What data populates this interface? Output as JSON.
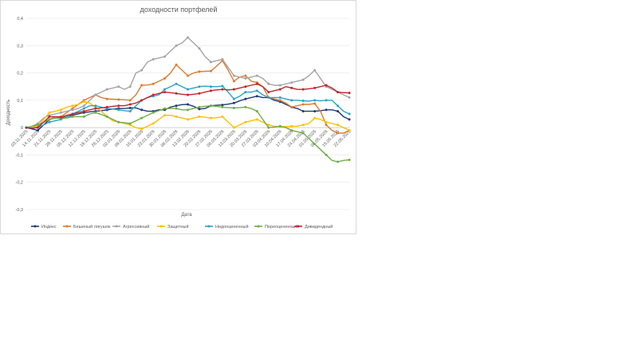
{
  "chart_data": {
    "type": "line",
    "title": "доходности портфелей",
    "xlabel": "Дата",
    "ylabel": "Доходность",
    "ylim": [
      -0.3,
      0.4
    ],
    "yticks": [
      "0,4",
      "0,3",
      "0,2",
      "0,1",
      "0",
      "-0,1",
      "-0,2",
      "-0,3"
    ],
    "grid": true,
    "legend_position": "bottom",
    "categories": [
      "03.11.2025",
      "10.11.2025",
      "14.11.2025",
      "17.11.2025",
      "21.11.2025",
      "24.11.2025",
      "28.11.2025",
      "01.12.2025",
      "05.12.2025",
      "08.12.2025",
      "12.12.2025",
      "15.12.2025",
      "19.12.2025",
      "22.12.2025",
      "26.12.2025",
      "29.12.2025",
      "02.01.2026",
      "05.01.2026",
      "09.01.2026",
      "12.01.2026",
      "16.01.2026",
      "19.01.2026",
      "23.01.2026",
      "26.01.2026",
      "30.01.2026",
      "02.02.2026",
      "06.02.2026",
      "09.02.2026",
      "13.02.2026",
      "16.02.2026",
      "20.02.2026",
      "23.02.2026",
      "27.02.2026",
      "02.03.2026",
      "06.03.2026",
      "09.03.2026",
      "13.03.2026",
      "16.03.2026",
      "20.03.2026",
      "23.03.2026",
      "27.03.2026",
      "30.03.2026",
      "03.04.2026",
      "06.04.2026",
      "10.04.2026",
      "13.04.2026",
      "17.04.2026",
      "20.04.2026",
      "24.04.2026",
      "27.04.2026",
      "01.05.2026",
      "04.05.2026",
      "08.05.2026",
      "11.05.2026",
      "15.05.2026",
      "18.05.2026",
      "22.05.2026"
    ],
    "x_tick_labels": [
      "03.11.2025",
      "14.11.2025",
      "21.11.2025",
      "28.11.2025",
      "05.12.2025",
      "12.12.2025",
      "19.12.2025",
      "26.12.2025",
      "02.01.2026",
      "09.01.2026",
      "16.01.2026",
      "23.01.2026",
      "30.01.2026",
      "06.02.2026",
      "13.02.2026",
      "20.02.2026",
      "27.02.2026",
      "06.03.2026",
      "13.03.2026",
      "20.03.2026",
      "27.03.2026",
      "03.04.2026",
      "10.04.2026",
      "17.04.2026",
      "24.04.2026",
      "01.05.2026",
      "08.05.2026",
      "15.05.2026",
      "22.05.2026"
    ],
    "marker_every": 2,
    "series": [
      {
        "name": "Индекс",
        "color": "#1f3a75",
        "values": [
          0,
          -0.005,
          -0.01,
          0.01,
          0.03,
          0.035,
          0.035,
          0.04,
          0.045,
          0.05,
          0.055,
          0.058,
          0.06,
          0.062,
          0.065,
          0.068,
          0.07,
          0.07,
          0.072,
          0.072,
          0.065,
          0.06,
          0.06,
          0.065,
          0.065,
          0.075,
          0.08,
          0.084,
          0.085,
          0.078,
          0.068,
          0.07,
          0.08,
          0.082,
          0.083,
          0.086,
          0.09,
          0.098,
          0.105,
          0.11,
          0.115,
          0.11,
          0.11,
          0.1,
          0.095,
          0.085,
          0.075,
          0.07,
          0.06,
          0.06,
          0.06,
          0.062,
          0.065,
          0.065,
          0.06,
          0.04,
          0.03
        ]
      },
      {
        "name": "Бешеный лягушок",
        "color": "#e07b2f",
        "values": [
          0,
          -0.002,
          0.005,
          0.02,
          0.03,
          0.04,
          0.04,
          0.055,
          0.07,
          0.085,
          0.1,
          0.11,
          0.12,
          0.11,
          0.105,
          0.104,
          0.103,
          0.102,
          0.1,
          0.12,
          0.155,
          0.156,
          0.16,
          0.17,
          0.18,
          0.2,
          0.23,
          0.21,
          0.19,
          0.2,
          0.205,
          0.206,
          0.207,
          0.225,
          0.245,
          0.21,
          0.17,
          0.185,
          0.19,
          0.17,
          0.165,
          0.15,
          0.11,
          0.105,
          0.1,
          0.09,
          0.075,
          0.08,
          0.085,
          0.085,
          0.088,
          0.06,
          0.01,
          -0.01,
          -0.02,
          -0.02,
          -0.01
        ]
      },
      {
        "name": "Агрессивный",
        "color": "#a5a5a5",
        "values": [
          0,
          0.005,
          0.015,
          0.035,
          0.045,
          0.05,
          0.055,
          0.06,
          0.065,
          0.07,
          0.08,
          0.1,
          0.12,
          0.13,
          0.14,
          0.145,
          0.15,
          0.14,
          0.15,
          0.2,
          0.21,
          0.24,
          0.25,
          0.255,
          0.26,
          0.28,
          0.3,
          0.31,
          0.33,
          0.31,
          0.29,
          0.26,
          0.24,
          0.245,
          0.25,
          0.22,
          0.19,
          0.185,
          0.18,
          0.185,
          0.19,
          0.18,
          0.16,
          0.155,
          0.155,
          0.16,
          0.165,
          0.17,
          0.175,
          0.19,
          0.21,
          0.18,
          0.15,
          0.14,
          0.13,
          0.12,
          0.11
        ]
      },
      {
        "name": "Защитный",
        "color": "#ffc000",
        "values": [
          0,
          0.002,
          0.005,
          0.03,
          0.055,
          0.06,
          0.065,
          0.075,
          0.08,
          0.085,
          0.095,
          0.09,
          0.075,
          0.06,
          0.04,
          0.025,
          0.02,
          0.015,
          0.01,
          0,
          -0.005,
          0.005,
          0.015,
          0.03,
          0.045,
          0.045,
          0.04,
          0.035,
          0.03,
          0.035,
          0.04,
          0.038,
          0.035,
          0.036,
          0.04,
          0.02,
          0,
          0.01,
          0.02,
          0.025,
          0.03,
          0.02,
          0.01,
          0.005,
          0.004,
          0.004,
          0.005,
          0.005,
          0.01,
          0.015,
          0.035,
          0.03,
          0.02,
          0.015,
          0.01,
          0,
          -0.01
        ]
      },
      {
        "name": "Недооцененный",
        "color": "#2ba3c9",
        "values": [
          0,
          -0.002,
          0,
          0.01,
          0.02,
          0.025,
          0.03,
          0.04,
          0.05,
          0.06,
          0.07,
          0.08,
          0.08,
          0.075,
          0.07,
          0.068,
          0.065,
          0.062,
          0.06,
          0.08,
          0.1,
          0.11,
          0.115,
          0.12,
          0.14,
          0.15,
          0.16,
          0.15,
          0.14,
          0.145,
          0.15,
          0.152,
          0.15,
          0.15,
          0.152,
          0.13,
          0.105,
          0.115,
          0.13,
          0.13,
          0.135,
          0.12,
          0.11,
          0.11,
          0.11,
          0.105,
          0.1,
          0.1,
          0.098,
          0.097,
          0.1,
          0.098,
          0.1,
          0.1,
          0.08,
          0.06,
          0.05
        ]
      },
      {
        "name": "Переоцененный",
        "color": "#70ad47",
        "values": [
          0,
          0.005,
          0.01,
          0.02,
          0.03,
          0.035,
          0.035,
          0.035,
          0.04,
          0.04,
          0.04,
          0.05,
          0.055,
          0.048,
          0.04,
          0.03,
          0.02,
          0.018,
          0.015,
          0.025,
          0.035,
          0.045,
          0.055,
          0.062,
          0.07,
          0.07,
          0.07,
          0.065,
          0.065,
          0.07,
          0.075,
          0.078,
          0.08,
          0.078,
          0.075,
          0.073,
          0.072,
          0.073,
          0.075,
          0.07,
          0.06,
          0.03,
          0,
          0.002,
          0.005,
          0,
          -0.01,
          -0.015,
          -0.02,
          -0.04,
          -0.06,
          -0.08,
          -0.1,
          -0.12,
          -0.125,
          -0.12,
          -0.118
        ]
      },
      {
        "name": "Дивидендный",
        "color": "#c0272d",
        "values": [
          0,
          -0.002,
          0,
          0.02,
          0.04,
          0.04,
          0.038,
          0.045,
          0.05,
          0.055,
          0.06,
          0.065,
          0.07,
          0.072,
          0.075,
          0.078,
          0.08,
          0.08,
          0.085,
          0.09,
          0.1,
          0.11,
          0.12,
          0.125,
          0.13,
          0.128,
          0.125,
          0.122,
          0.12,
          0.122,
          0.125,
          0.13,
          0.135,
          0.138,
          0.14,
          0.138,
          0.14,
          0.145,
          0.15,
          0.155,
          0.16,
          0.15,
          0.13,
          0.135,
          0.14,
          0.15,
          0.145,
          0.14,
          0.14,
          0.142,
          0.145,
          0.15,
          0.155,
          0.145,
          0.13,
          0.128,
          0.127
        ]
      }
    ]
  }
}
